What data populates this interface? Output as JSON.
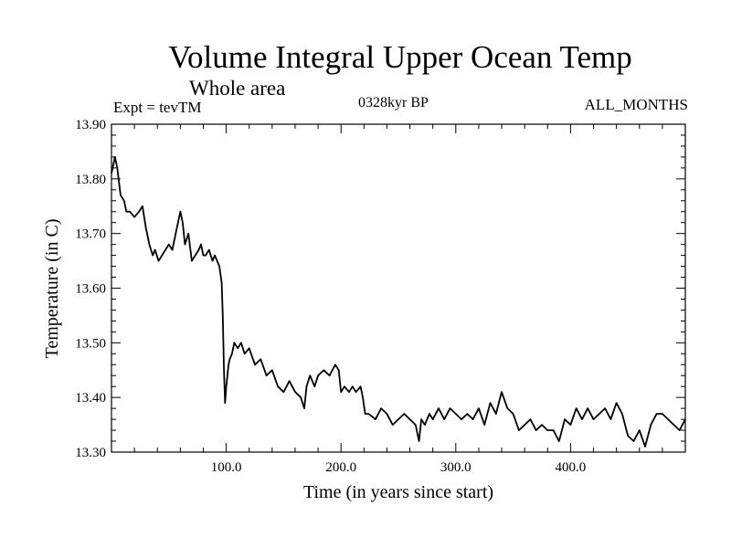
{
  "header": {
    "title": "Volume Integral Upper Ocean Temp",
    "subtitle": "Whole area",
    "experiment": "Expt = tevTM",
    "period": "0328kyr BP",
    "months": "ALL_MONTHS"
  },
  "chart_data": {
    "type": "line",
    "title": "Volume Integral Upper Ocean Temp",
    "subtitle": "Whole area",
    "xlabel": "Time (in years since start)",
    "ylabel": "Temperature (in C)",
    "xlim": [
      0,
      500
    ],
    "ylim": [
      13.3,
      13.9
    ],
    "x_ticks": [
      100,
      200,
      300,
      400
    ],
    "x_tick_labels": [
      "100.0",
      "200.0",
      "300.0",
      "400.0"
    ],
    "y_ticks": [
      13.3,
      13.4,
      13.5,
      13.6,
      13.7,
      13.8,
      13.9
    ],
    "y_tick_labels": [
      "13.30",
      "13.40",
      "13.50",
      "13.60",
      "13.70",
      "13.80",
      "13.90"
    ],
    "grid": false,
    "series": [
      {
        "color": "#000000",
        "x": [
          0,
          3,
          5,
          8,
          11,
          13,
          16,
          20,
          24,
          27,
          30,
          33,
          36,
          38,
          41,
          44,
          47,
          50,
          53,
          56,
          58,
          60,
          62,
          64,
          67,
          70,
          73,
          76,
          78,
          80,
          82,
          85,
          88,
          90,
          92,
          94,
          96,
          97,
          98,
          99,
          100,
          101,
          102,
          103,
          105,
          107,
          110,
          113,
          116,
          120,
          125,
          130,
          135,
          140,
          145,
          150,
          155,
          160,
          165,
          168,
          170,
          173,
          177,
          180,
          185,
          190,
          195,
          198,
          200,
          203,
          207,
          210,
          213,
          217,
          219,
          221,
          224,
          230,
          235,
          240,
          245,
          250,
          255,
          260,
          265,
          268,
          270,
          273,
          277,
          280,
          285,
          290,
          295,
          300,
          305,
          310,
          315,
          320,
          325,
          330,
          335,
          340,
          345,
          350,
          355,
          360,
          365,
          370,
          375,
          380,
          385,
          390,
          395,
          400,
          405,
          410,
          415,
          420,
          425,
          430,
          435,
          440,
          445,
          450,
          455,
          460,
          465,
          470,
          475,
          480,
          485,
          490,
          495,
          500
        ],
        "values": [
          13.81,
          13.84,
          13.82,
          13.77,
          13.76,
          13.74,
          13.74,
          13.73,
          13.74,
          13.75,
          13.71,
          13.68,
          13.66,
          13.67,
          13.65,
          13.66,
          13.67,
          13.68,
          13.67,
          13.7,
          13.72,
          13.74,
          13.72,
          13.68,
          13.7,
          13.65,
          13.66,
          13.67,
          13.68,
          13.66,
          13.66,
          13.67,
          13.65,
          13.66,
          13.65,
          13.64,
          13.61,
          13.55,
          13.45,
          13.39,
          13.42,
          13.44,
          13.46,
          13.47,
          13.48,
          13.5,
          13.49,
          13.5,
          13.48,
          13.49,
          13.46,
          13.47,
          13.44,
          13.45,
          13.42,
          13.41,
          13.43,
          13.41,
          13.4,
          13.38,
          13.42,
          13.44,
          13.42,
          13.44,
          13.45,
          13.44,
          13.46,
          13.45,
          13.41,
          13.42,
          13.41,
          13.42,
          13.41,
          13.42,
          13.4,
          13.37,
          13.37,
          13.36,
          13.38,
          13.37,
          13.35,
          13.36,
          13.37,
          13.36,
          13.35,
          13.32,
          13.36,
          13.35,
          13.37,
          13.36,
          13.38,
          13.36,
          13.38,
          13.37,
          13.36,
          13.37,
          13.36,
          13.38,
          13.35,
          13.39,
          13.37,
          13.41,
          13.38,
          13.37,
          13.34,
          13.35,
          13.36,
          13.34,
          13.35,
          13.34,
          13.34,
          13.32,
          13.36,
          13.35,
          13.38,
          13.36,
          13.38,
          13.36,
          13.37,
          13.38,
          13.36,
          13.39,
          13.37,
          13.33,
          13.32,
          13.34,
          13.31,
          13.35,
          13.37,
          13.37,
          13.36,
          13.35,
          13.34,
          13.36
        ]
      }
    ]
  }
}
